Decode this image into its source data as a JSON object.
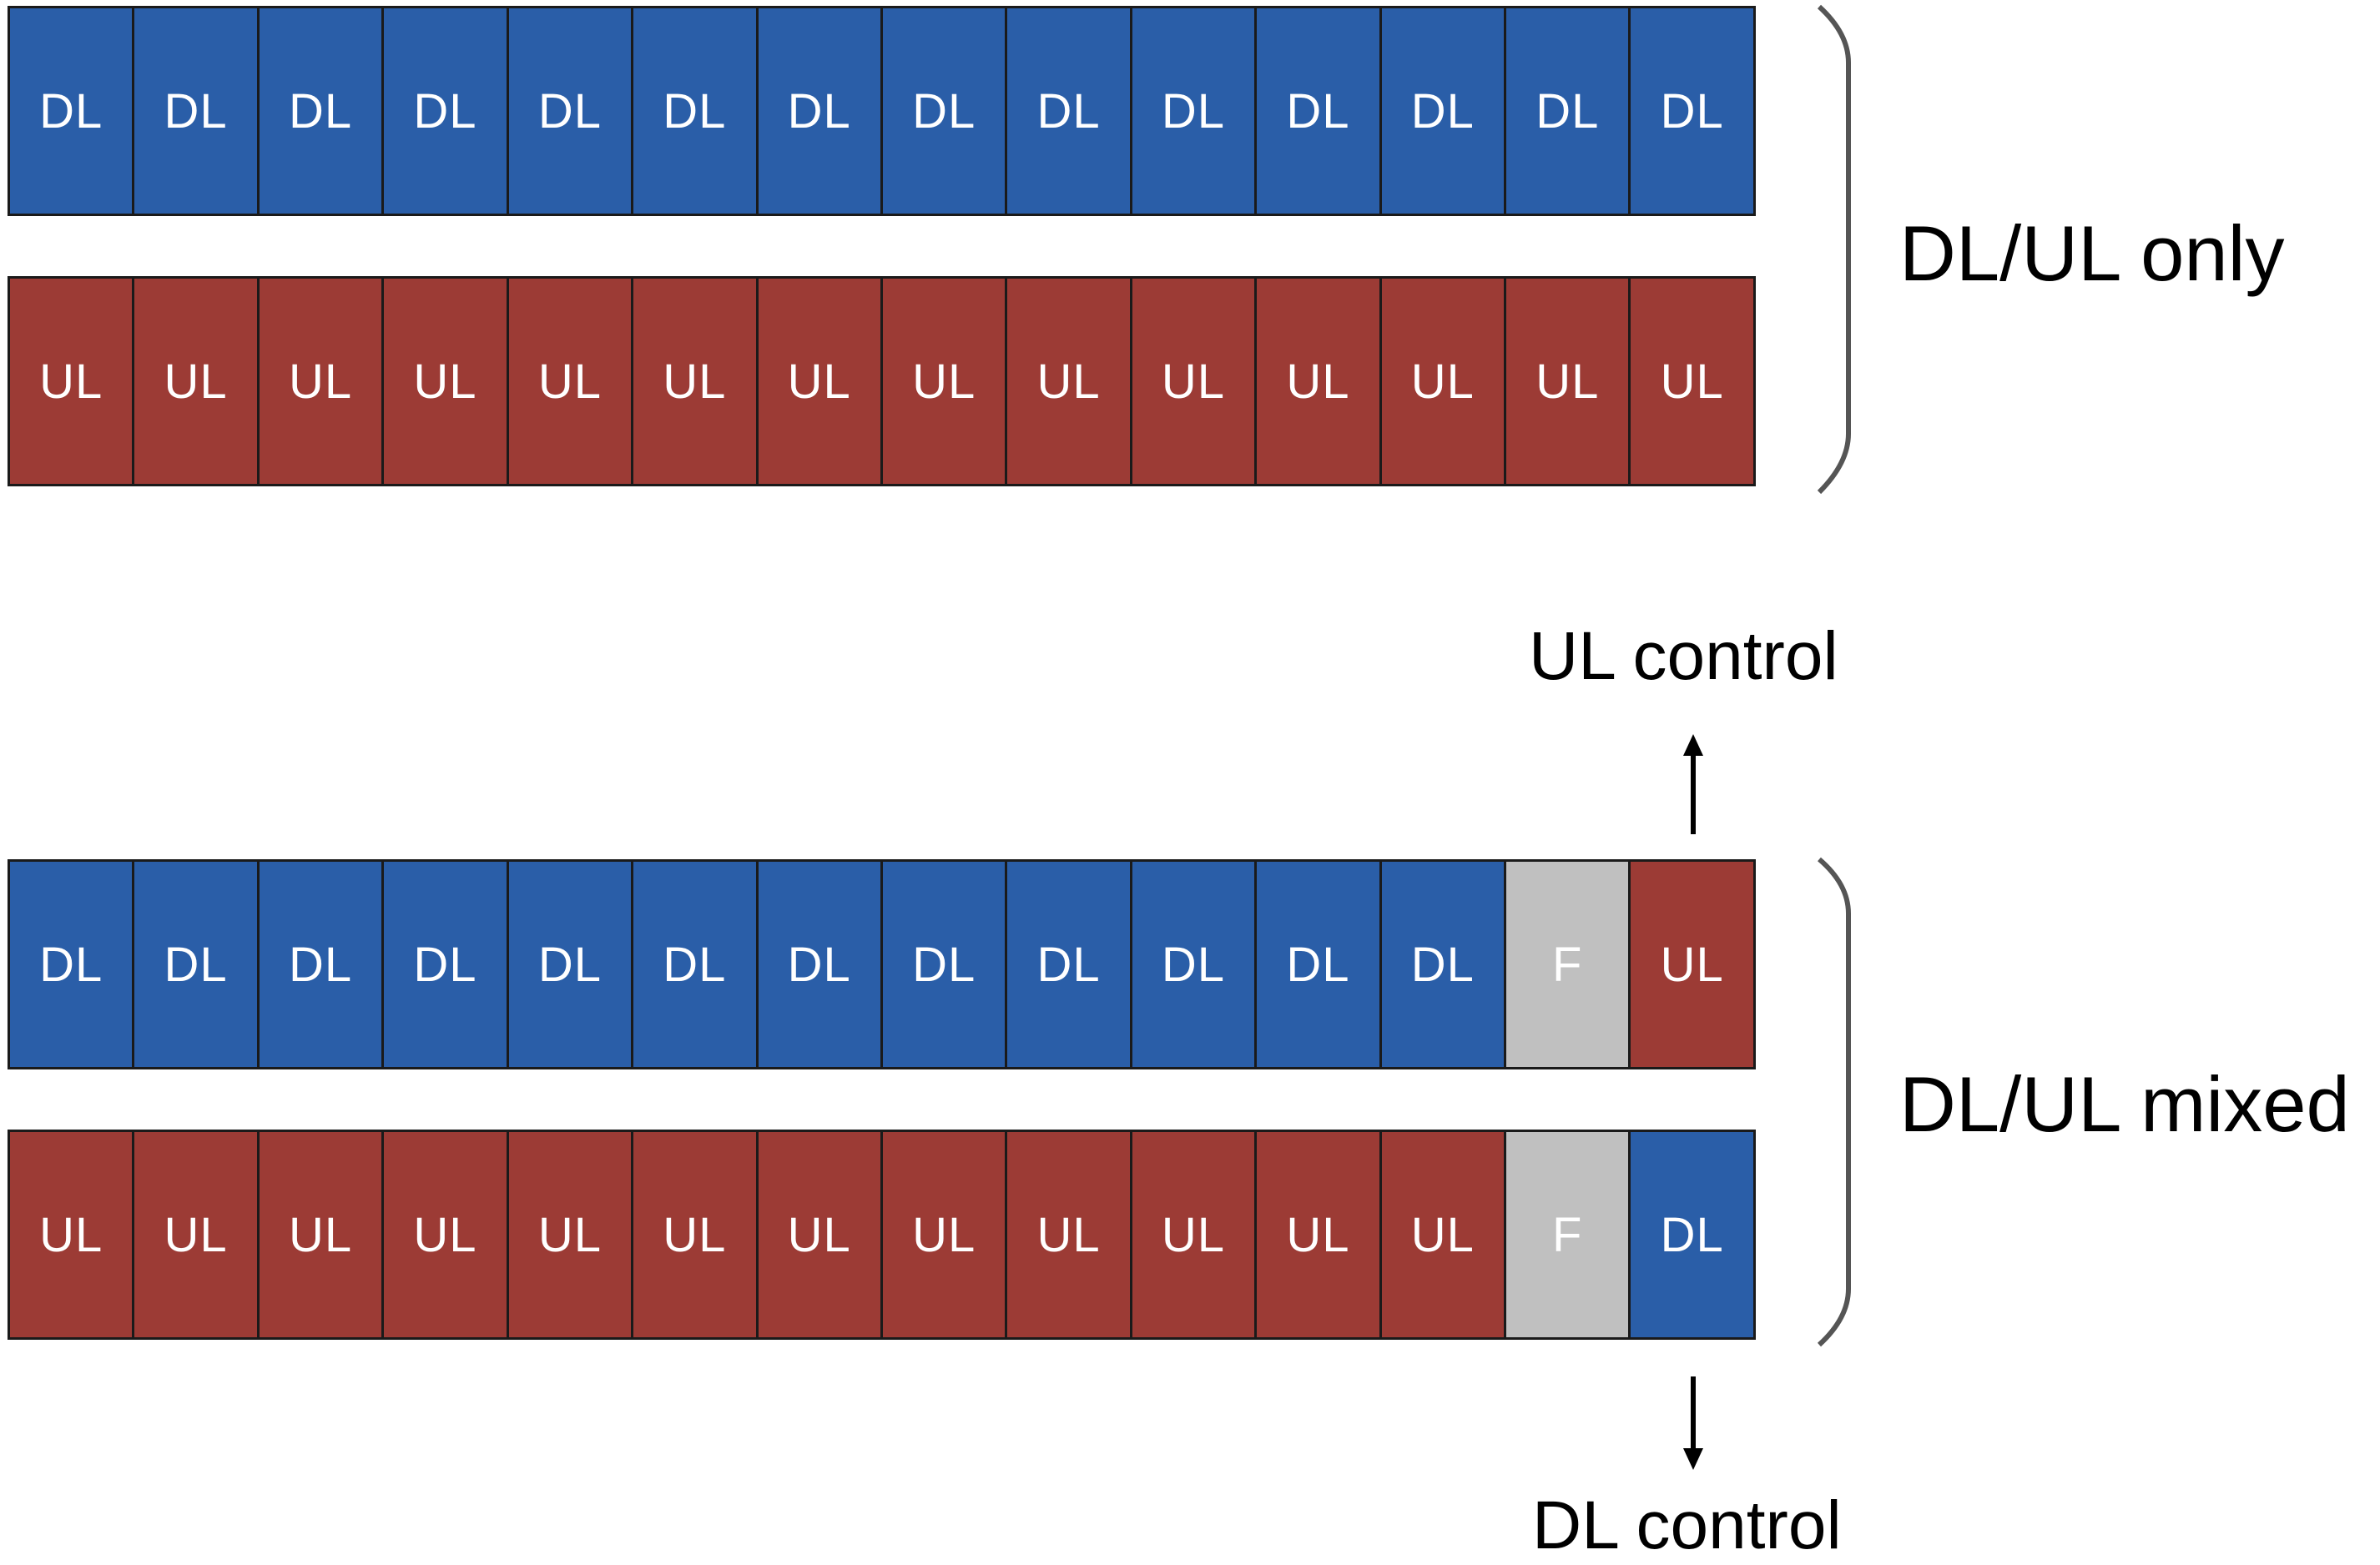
{
  "colors": {
    "DL": "#2a5ea8",
    "UL": "#9c3b35",
    "F": "#c0c0c0",
    "border": "#1a1a1a",
    "bracket": "#555555"
  },
  "rows": [
    [
      "DL",
      "DL",
      "DL",
      "DL",
      "DL",
      "DL",
      "DL",
      "DL",
      "DL",
      "DL",
      "DL",
      "DL",
      "DL",
      "DL"
    ],
    [
      "UL",
      "UL",
      "UL",
      "UL",
      "UL",
      "UL",
      "UL",
      "UL",
      "UL",
      "UL",
      "UL",
      "UL",
      "UL",
      "UL"
    ],
    [
      "DL",
      "DL",
      "DL",
      "DL",
      "DL",
      "DL",
      "DL",
      "DL",
      "DL",
      "DL",
      "DL",
      "DL",
      "F",
      "UL"
    ],
    [
      "UL",
      "UL",
      "UL",
      "UL",
      "UL",
      "UL",
      "UL",
      "UL",
      "UL",
      "UL",
      "UL",
      "UL",
      "F",
      "DL"
    ]
  ],
  "labels": {
    "only": "DL/UL only",
    "mixed": "DL/UL mixed",
    "ul_control": "UL control",
    "dl_control": "DL control"
  }
}
